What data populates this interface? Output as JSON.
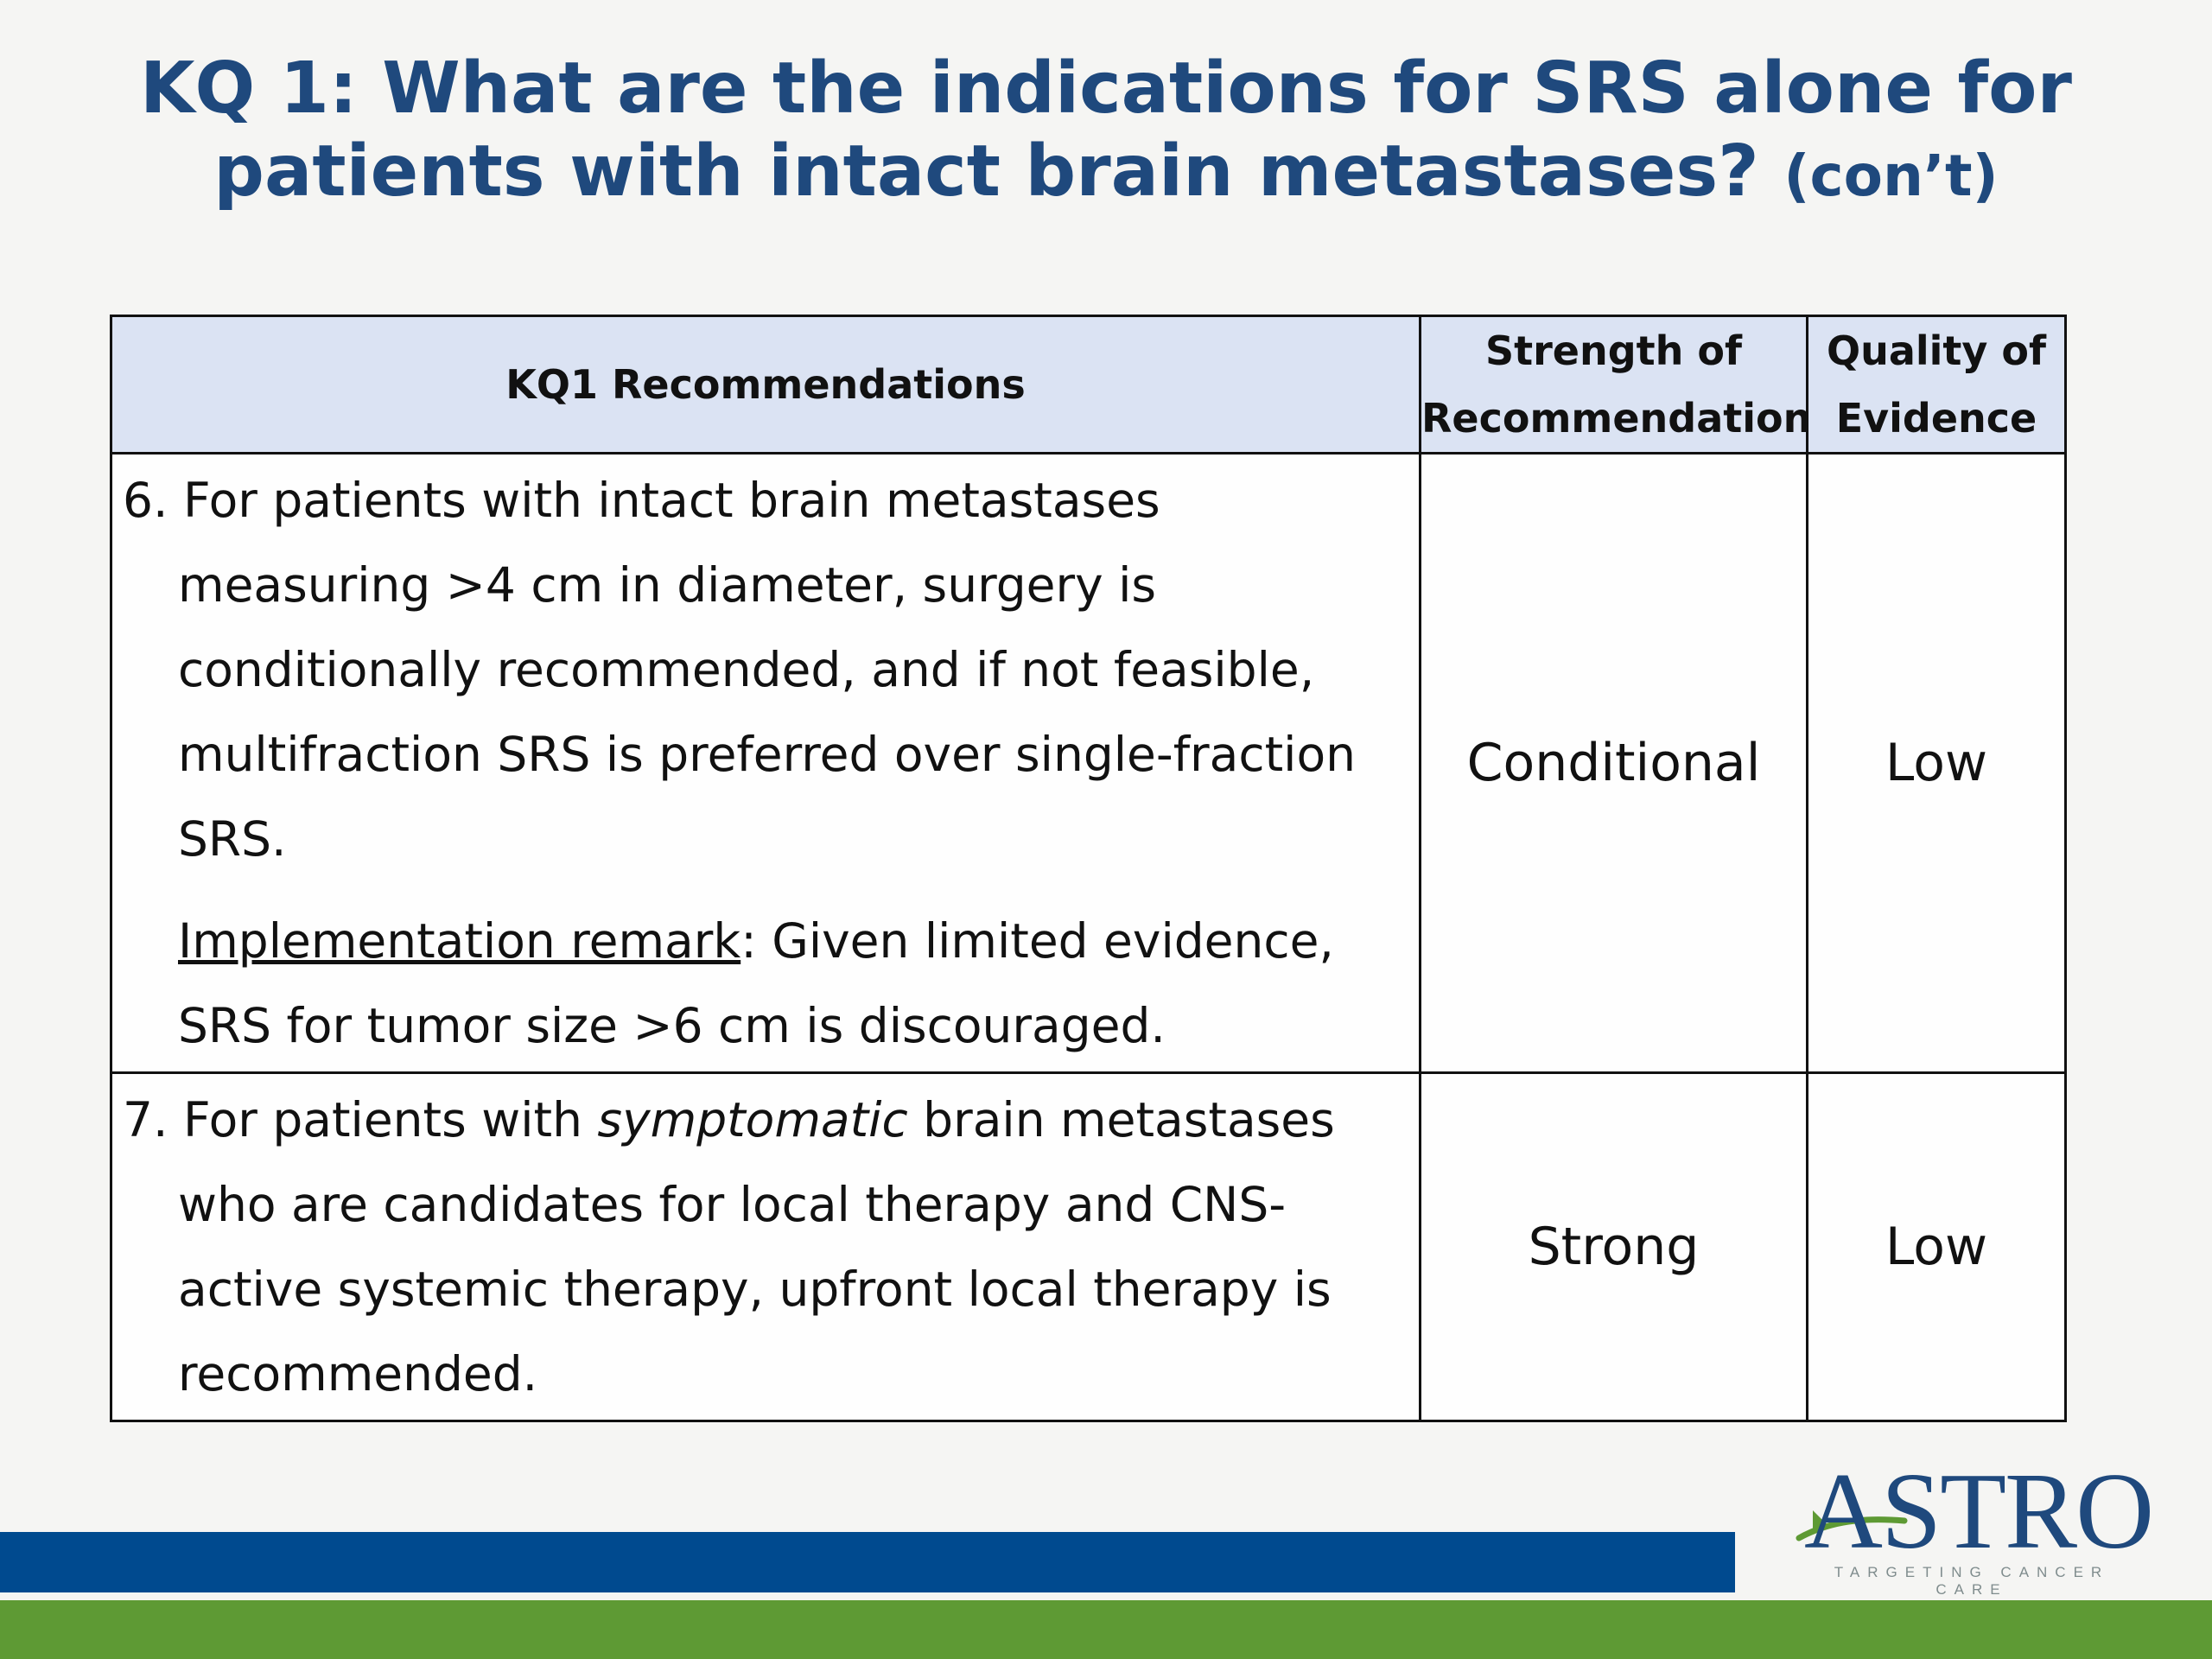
{
  "slide": {
    "title_line1": "KQ 1: What are the indications for SRS alone for",
    "title_line2": "patients with intact brain metastases?",
    "title_suffix": "(con’t)"
  },
  "table": {
    "headers": {
      "recommendations": "KQ1 Recommendations",
      "strength_line1": "Strength of",
      "strength_line2": "Recommendation",
      "quality_line1": "Quality of",
      "quality_line2": "Evidence"
    },
    "rows": [
      {
        "text": "6. For patients with intact brain metastases measuring >4 cm in diameter, surgery is conditionally recommended, and if not feasible, multifraction SRS is preferred over single-fraction SRS.",
        "remark_label": "Implementation remark",
        "remark_text": ": Given limited evidence, SRS for tumor size >6 cm is discouraged.",
        "strength": "Conditional",
        "quality": "Low"
      },
      {
        "text_before": "7. For patients with ",
        "text_emphasis": "symptomatic",
        "text_after": " brain metastases who are candidates for local therapy and CNS-active systemic therapy, upfront local therapy is recommended.",
        "strength": "Strong",
        "quality": "Low"
      }
    ]
  },
  "footer": {
    "logo_text": "ASTRO",
    "logo_tagline": "TARGETING CANCER CARE",
    "colors": {
      "blue_bar": "#004a8f",
      "green_bar": "#5e9a34",
      "title": "#1f497d",
      "header_fill": "#dbe3f3"
    }
  }
}
